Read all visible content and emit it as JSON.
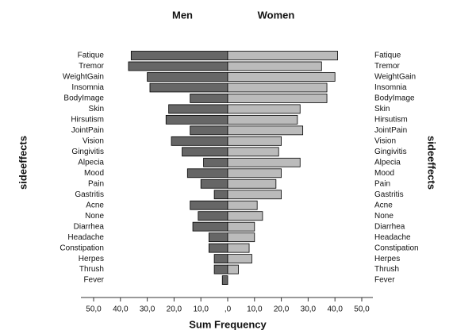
{
  "chart_data": {
    "type": "pyramid",
    "ylabel": "sideeffects",
    "xlabel": "Sum Frequency",
    "categories": [
      "Fatique",
      "Tremor",
      "WeightGain",
      "Insomnia",
      "BodyImage",
      "Skin",
      "Hirsutism",
      "JointPain",
      "Vision",
      "Gingivitis",
      "Alpecia",
      "Mood",
      "Pain",
      "Gastritis",
      "Acne",
      "None",
      "Diarrhea",
      "Headache",
      "Constipation",
      "Herpes",
      "Thrush",
      "Fever"
    ],
    "series": [
      {
        "name": "Men",
        "color": "#666666",
        "values": [
          36,
          37,
          30,
          29,
          14,
          22,
          23,
          14,
          21,
          17,
          9,
          15,
          10,
          5,
          14,
          11,
          13,
          7,
          7,
          5,
          5,
          2
        ]
      },
      {
        "name": "Women",
        "color": "#bbbbbb",
        "values": [
          41,
          35,
          40,
          37,
          37,
          27,
          26,
          28,
          20,
          19,
          27,
          20,
          18,
          20,
          11,
          13,
          10,
          10,
          8,
          9,
          4,
          0
        ]
      }
    ],
    "xlim": [
      0,
      50
    ],
    "xticks_left": [
      {
        "value": 50,
        "label": "50,0"
      },
      {
        "value": 40,
        "label": "40,0"
      },
      {
        "value": 30,
        "label": "30,0"
      },
      {
        "value": 20,
        "label": "20,0"
      },
      {
        "value": 10,
        "label": "10,0"
      }
    ],
    "xticks_right": [
      {
        "value": 0,
        "label": ",0"
      },
      {
        "value": 10,
        "label": "10,0"
      },
      {
        "value": 20,
        "label": "20,0"
      },
      {
        "value": 30,
        "label": "30,0"
      },
      {
        "value": 40,
        "label": "40,0"
      },
      {
        "value": 50,
        "label": "50,0"
      }
    ]
  }
}
